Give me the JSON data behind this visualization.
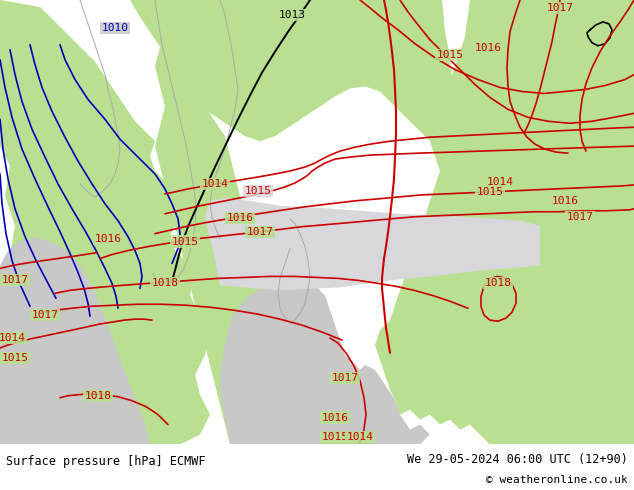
{
  "title_left": "Surface pressure [hPa] ECMWF",
  "title_right": "We 29-05-2024 06:00 UTC (12+90)",
  "copyright": "© weatheronline.co.uk",
  "land_color": "#b8e090",
  "sea_color": "#c8c8c8",
  "low_pressure_fill": "#e0e0e8",
  "red": "#cc0000",
  "blue": "#0000bb",
  "black": "#000000",
  "gray_coast": "#aaaaaa",
  "footer_bg": "#ffffff",
  "label_fs": 8,
  "footer_fs": 8.5
}
